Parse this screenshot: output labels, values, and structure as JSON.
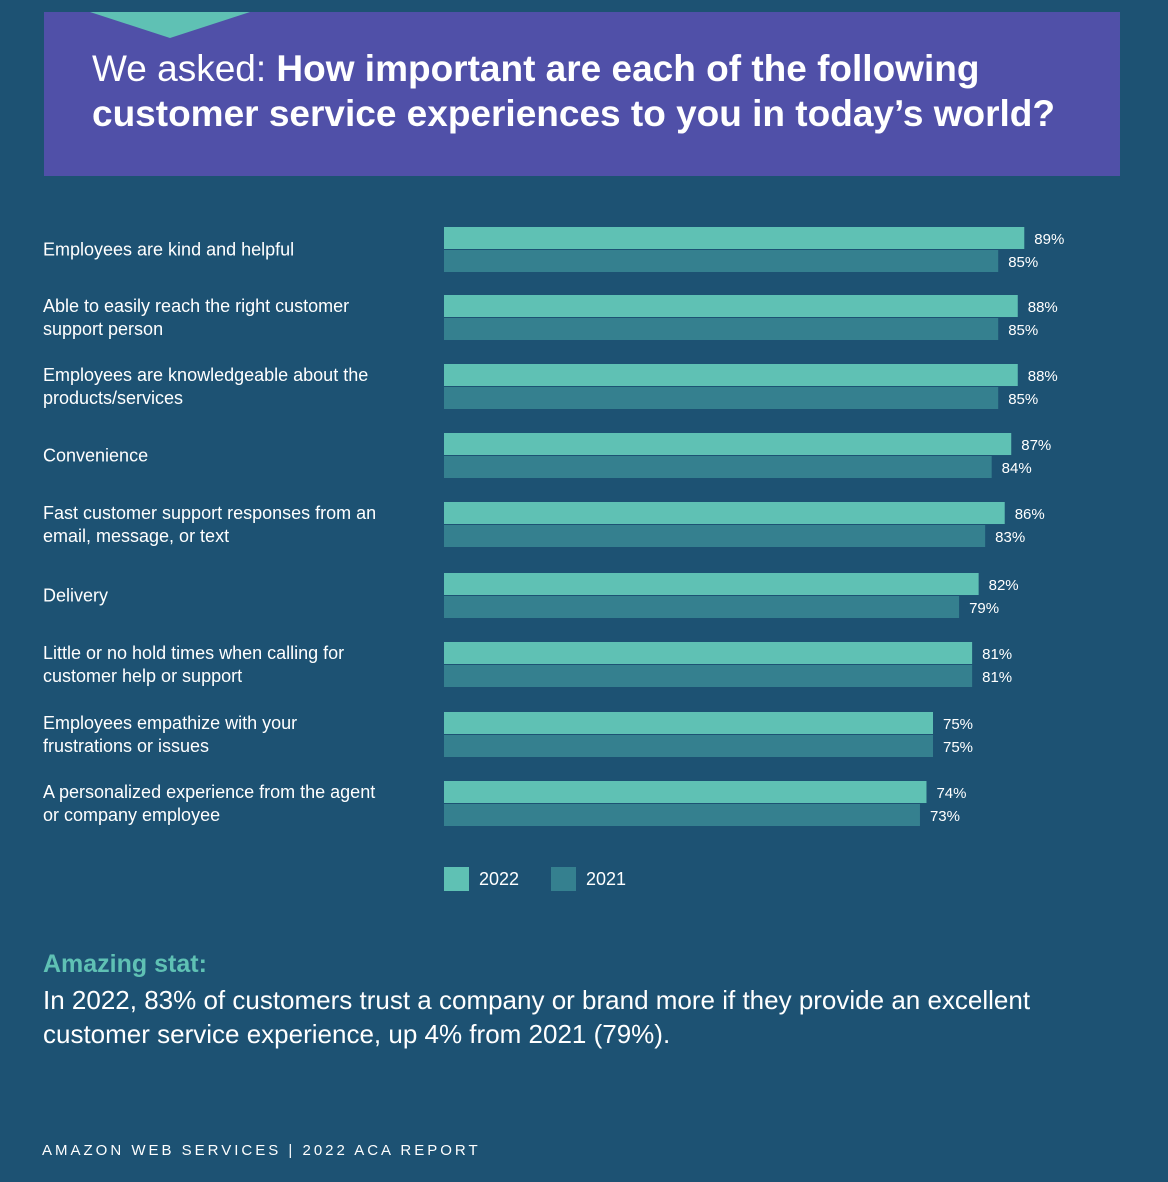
{
  "header": {
    "lead": "We asked: ",
    "question": "How important are each of the following customer service experiences to you in today’s world?"
  },
  "colors": {
    "s2022": "#5fc1b4",
    "s2021": "#35808f",
    "accent": "#5fc1b4",
    "header_bg": "#5050a8"
  },
  "chart_data": {
    "type": "bar",
    "orientation": "horizontal",
    "categories": [
      [
        "Employees are kind and helpful"
      ],
      [
        "Able to easily reach the right customer",
        "support person"
      ],
      [
        "Employees are knowledgeable about the",
        "products/services"
      ],
      [
        "Convenience"
      ],
      [
        "Fast customer support responses from an",
        "email, message, or text"
      ],
      [
        "Delivery"
      ],
      [
        "Little or no hold times when calling for",
        "customer help or support"
      ],
      [
        "Employees empathize with your",
        "frustrations or issues"
      ],
      [
        "A personalized experience from the agent",
        "or company employee"
      ]
    ],
    "series": [
      {
        "name": "2022",
        "values": [
          89,
          88,
          88,
          87,
          86,
          82,
          81,
          75,
          74
        ],
        "labels": [
          "89%",
          "88%",
          "88%",
          "87%",
          "86%",
          "82%",
          "81%",
          "75%",
          "74%"
        ]
      },
      {
        "name": "2021",
        "values": [
          85,
          85,
          85,
          84,
          83,
          79,
          81,
          75,
          73
        ],
        "labels": [
          "85%",
          "85%",
          "85%",
          "84%",
          "83%",
          "79%",
          "81%",
          "75%",
          "73%"
        ]
      }
    ],
    "xlim": [
      0,
      100
    ],
    "legend": "bottom"
  },
  "stat": {
    "heading": "Amazing stat:",
    "body": "In 2022, 83% of customers trust a company or brand more if they provide an excellent customer service experience, up 4% from 2021 (79%)."
  },
  "footer": "AMAZON WEB SERVICES | 2022 ACA REPORT"
}
